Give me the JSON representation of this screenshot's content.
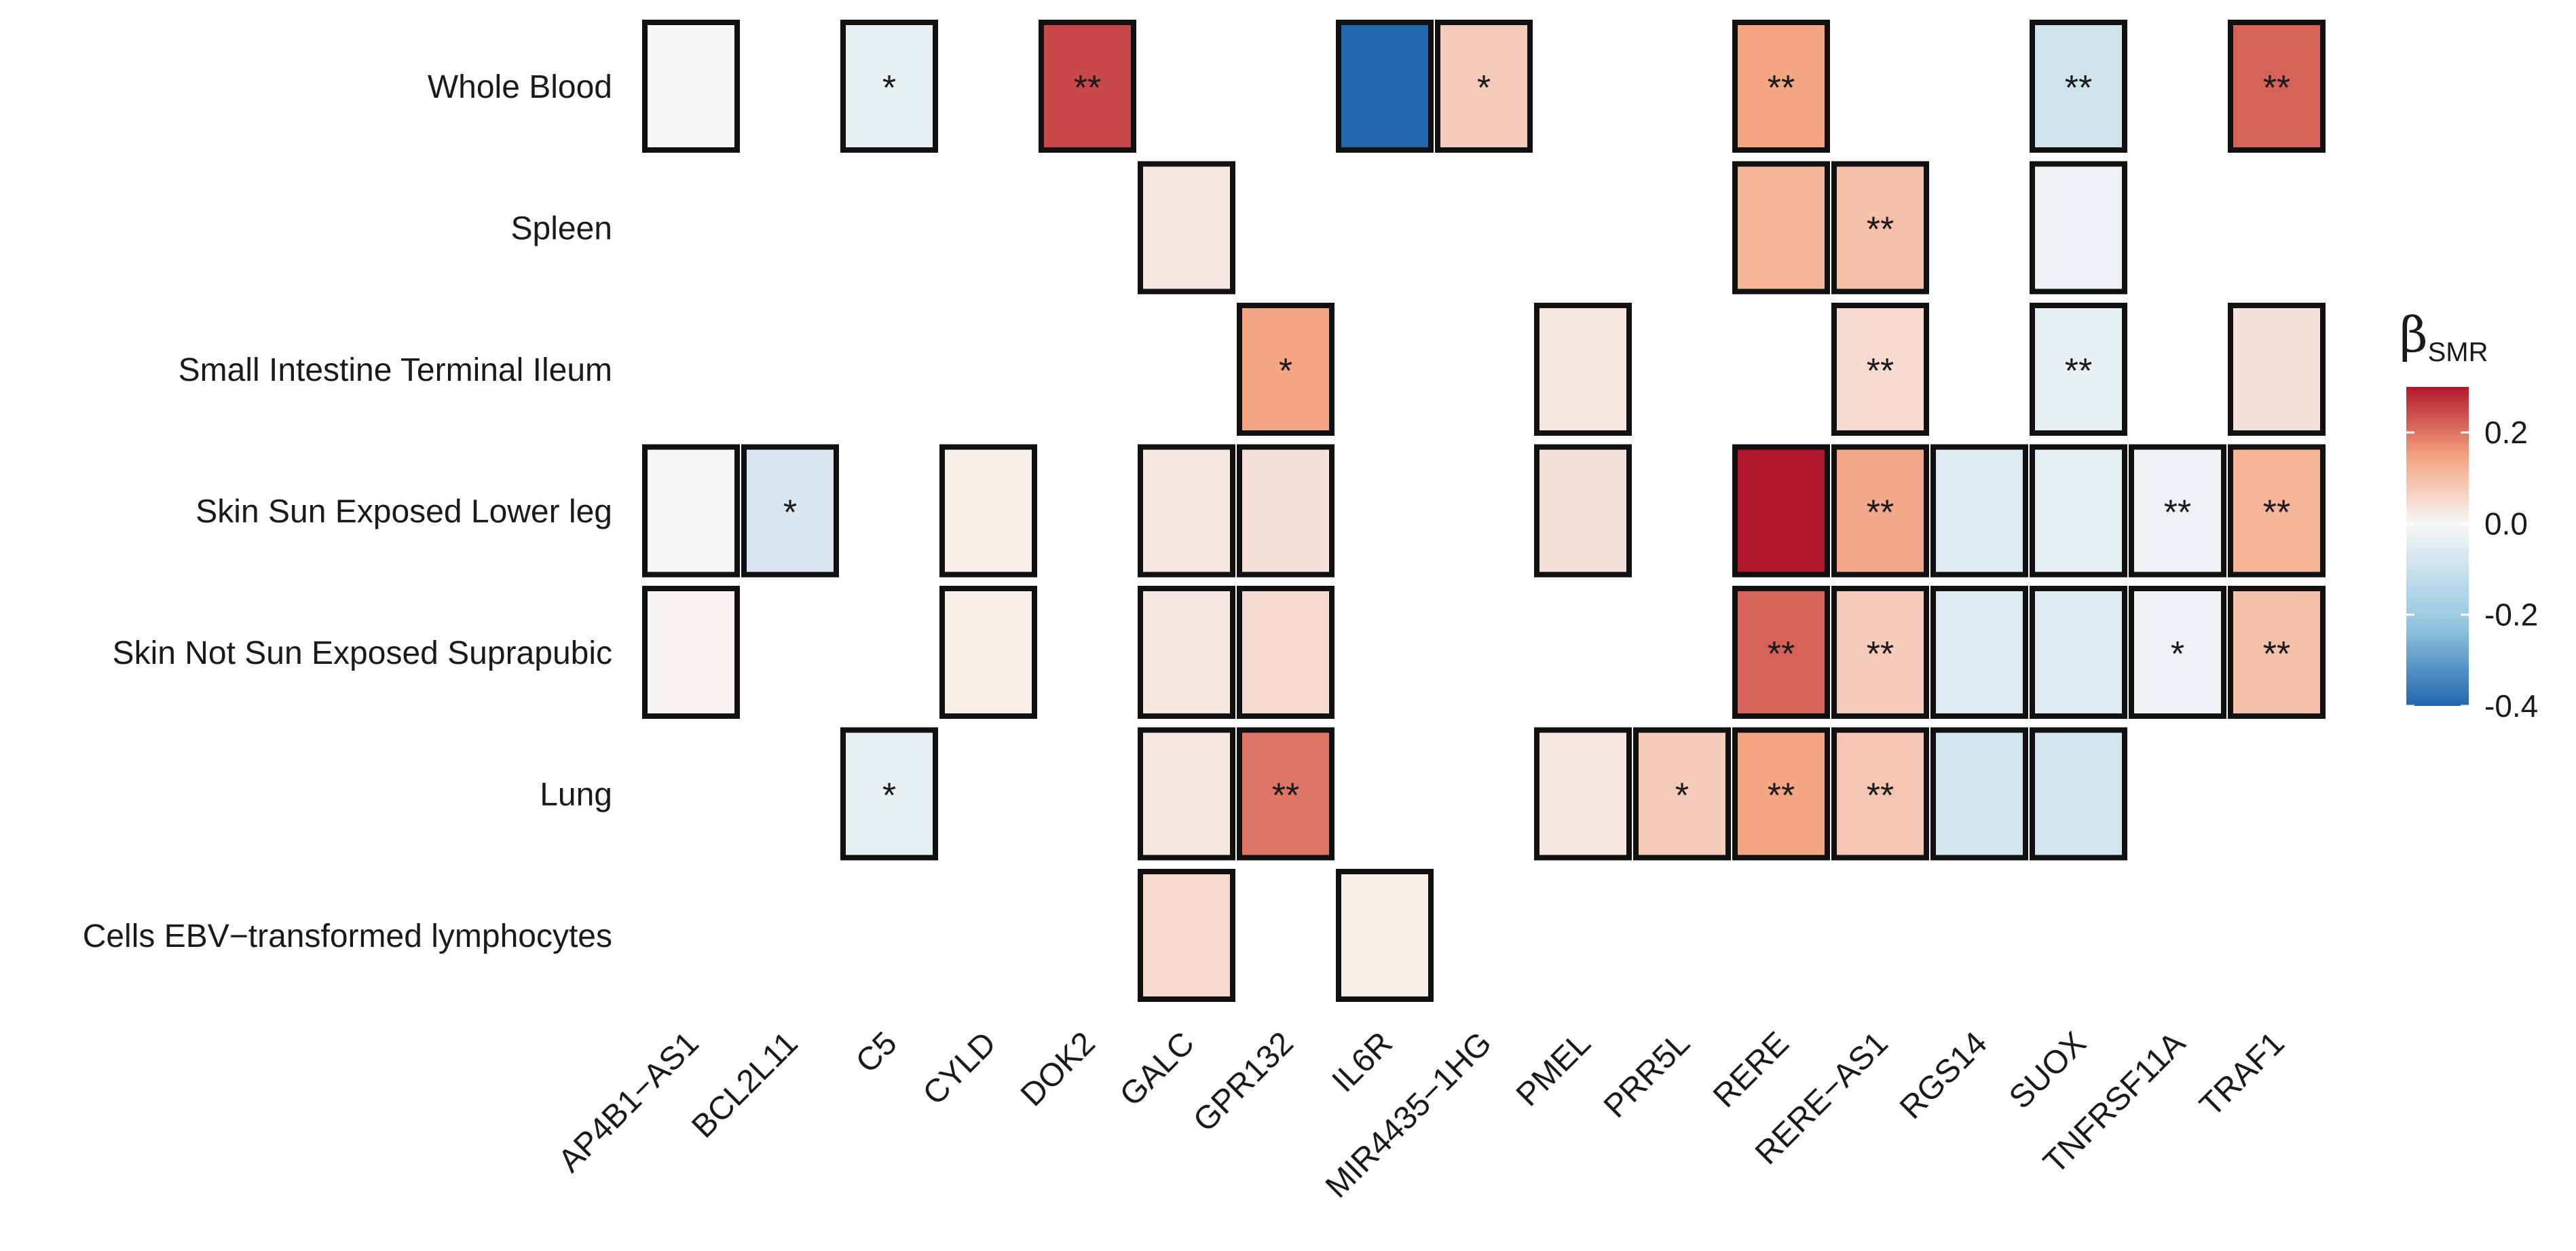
{
  "chart_data": {
    "type": "heatmap",
    "title": "",
    "legend": {
      "title": "β",
      "subscript": "SMR",
      "range": [
        -0.4,
        0.3
      ],
      "ticks": [
        0.2,
        0.0,
        -0.2,
        -0.4
      ],
      "tick_labels": [
        "0.2",
        "0.0",
        "-0.2",
        "-0.4"
      ],
      "colors": {
        "low": "#2166ac",
        "mid": "#f7f7f7",
        "high": "#b2182b"
      }
    },
    "rows": [
      "Whole Blood",
      "Spleen",
      "Small Intestine Terminal Ileum",
      "Skin Sun Exposed Lower leg",
      "Skin Not Sun Exposed Suprapubic",
      "Lung",
      "Cells EBV−transformed lymphocytes"
    ],
    "columns": [
      "AP4B1−AS1",
      "BCL2L11",
      "C5",
      "CYLD",
      "DOK2",
      "GALC",
      "GPR132",
      "IL6R",
      "MIR4435−1HG",
      "PMEL",
      "PRR5L",
      "RERE",
      "RERE−AS1",
      "RGS14",
      "SUOX",
      "TNFRSF11A",
      "TRAF1"
    ],
    "cells": [
      {
        "row": 0,
        "col": 0,
        "value": 0.0,
        "label": ""
      },
      {
        "row": 0,
        "col": 2,
        "value": -0.03,
        "label": "*"
      },
      {
        "row": 0,
        "col": 4,
        "value": 0.25,
        "label": "**"
      },
      {
        "row": 0,
        "col": 7,
        "value": -0.4,
        "label": ""
      },
      {
        "row": 0,
        "col": 8,
        "value": 0.08,
        "label": "*"
      },
      {
        "row": 0,
        "col": 11,
        "value": 0.15,
        "label": "**"
      },
      {
        "row": 0,
        "col": 14,
        "value": -0.08,
        "label": "**"
      },
      {
        "row": 0,
        "col": 16,
        "value": 0.22,
        "label": "**"
      },
      {
        "row": 1,
        "col": 5,
        "value": 0.03,
        "label": ""
      },
      {
        "row": 1,
        "col": 11,
        "value": 0.12,
        "label": ""
      },
      {
        "row": 1,
        "col": 12,
        "value": 0.1,
        "label": "**"
      },
      {
        "row": 1,
        "col": 14,
        "value": -0.02,
        "label": ""
      },
      {
        "row": 2,
        "col": 6,
        "value": 0.15,
        "label": "*"
      },
      {
        "row": 2,
        "col": 9,
        "value": 0.03,
        "label": ""
      },
      {
        "row": 2,
        "col": 12,
        "value": 0.05,
        "label": "**"
      },
      {
        "row": 2,
        "col": 14,
        "value": -0.03,
        "label": "**"
      },
      {
        "row": 2,
        "col": 16,
        "value": 0.04,
        "label": ""
      },
      {
        "row": 3,
        "col": 0,
        "value": 0.0,
        "label": ""
      },
      {
        "row": 3,
        "col": 1,
        "value": -0.06,
        "label": "*"
      },
      {
        "row": 3,
        "col": 3,
        "value": 0.02,
        "label": ""
      },
      {
        "row": 3,
        "col": 5,
        "value": 0.03,
        "label": ""
      },
      {
        "row": 3,
        "col": 6,
        "value": 0.04,
        "label": ""
      },
      {
        "row": 3,
        "col": 9,
        "value": 0.04,
        "label": ""
      },
      {
        "row": 3,
        "col": 11,
        "value": 0.3,
        "label": ""
      },
      {
        "row": 3,
        "col": 12,
        "value": 0.14,
        "label": "**"
      },
      {
        "row": 3,
        "col": 13,
        "value": -0.05,
        "label": ""
      },
      {
        "row": 3,
        "col": 14,
        "value": -0.03,
        "label": ""
      },
      {
        "row": 3,
        "col": 15,
        "value": -0.02,
        "label": "**"
      },
      {
        "row": 3,
        "col": 16,
        "value": 0.12,
        "label": "**"
      },
      {
        "row": 4,
        "col": 0,
        "value": 0.01,
        "label": ""
      },
      {
        "row": 4,
        "col": 3,
        "value": 0.02,
        "label": ""
      },
      {
        "row": 4,
        "col": 5,
        "value": 0.03,
        "label": ""
      },
      {
        "row": 4,
        "col": 6,
        "value": 0.05,
        "label": ""
      },
      {
        "row": 4,
        "col": 11,
        "value": 0.22,
        "label": "**"
      },
      {
        "row": 4,
        "col": 12,
        "value": 0.08,
        "label": "**"
      },
      {
        "row": 4,
        "col": 13,
        "value": -0.05,
        "label": ""
      },
      {
        "row": 4,
        "col": 14,
        "value": -0.05,
        "label": ""
      },
      {
        "row": 4,
        "col": 15,
        "value": -0.02,
        "label": "*"
      },
      {
        "row": 4,
        "col": 16,
        "value": 0.1,
        "label": "**"
      },
      {
        "row": 5,
        "col": 2,
        "value": -0.03,
        "label": "*"
      },
      {
        "row": 5,
        "col": 5,
        "value": 0.03,
        "label": ""
      },
      {
        "row": 5,
        "col": 6,
        "value": 0.2,
        "label": "**"
      },
      {
        "row": 5,
        "col": 9,
        "value": 0.03,
        "label": ""
      },
      {
        "row": 5,
        "col": 10,
        "value": 0.08,
        "label": "*"
      },
      {
        "row": 5,
        "col": 11,
        "value": 0.15,
        "label": "**"
      },
      {
        "row": 5,
        "col": 12,
        "value": 0.09,
        "label": "**"
      },
      {
        "row": 5,
        "col": 13,
        "value": -0.07,
        "label": ""
      },
      {
        "row": 5,
        "col": 14,
        "value": -0.07,
        "label": ""
      },
      {
        "row": 6,
        "col": 5,
        "value": 0.05,
        "label": ""
      },
      {
        "row": 6,
        "col": 7,
        "value": 0.02,
        "label": ""
      }
    ]
  }
}
